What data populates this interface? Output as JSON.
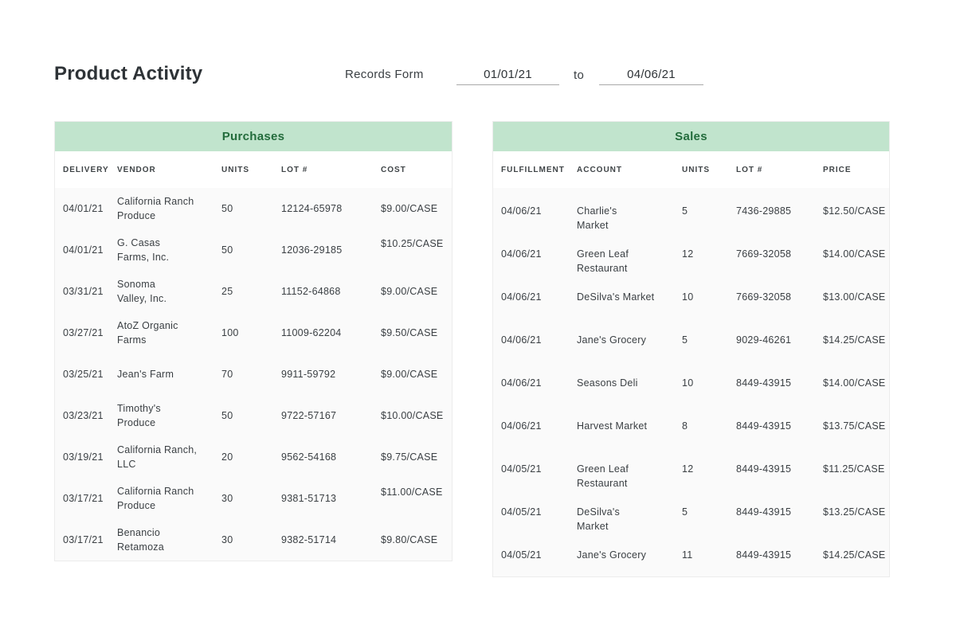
{
  "page": {
    "title": "Product Activity",
    "records_form_label": "Records Form",
    "to_label": "to",
    "date_from": "01/01/21",
    "date_to": "04/06/21"
  },
  "colors": {
    "band_green": "#c1e4cd",
    "title_green": "#236c3c",
    "text_dark": "#2e3337"
  },
  "purchases": {
    "title": "Purchases",
    "columns": [
      "DELIVERY",
      "VENDOR",
      "UNITS",
      "LOT #",
      "COST"
    ],
    "rows": [
      {
        "delivery": "04/01/21",
        "vendor": "California Ranch\nProduce",
        "units": "50",
        "lot": "12124-65978",
        "cost": "$9.00/CASE"
      },
      {
        "delivery": "04/01/21",
        "vendor": "G. Casas\nFarms, Inc.",
        "units": "50",
        "lot": "12036-29185",
        "cost": "$10.25/CASE",
        "costTop": true
      },
      {
        "delivery": "03/31/21",
        "vendor": "Sonoma\nValley, Inc.",
        "units": "25",
        "lot": "11152-64868",
        "cost": "$9.00/CASE"
      },
      {
        "delivery": "03/27/21",
        "vendor": "AtoZ Organic\nFarms",
        "units": "100",
        "lot": "11009-62204",
        "cost": "$9.50/CASE"
      },
      {
        "delivery": "03/25/21",
        "vendor": "Jean's Farm",
        "units": "70",
        "lot": "9911-59792",
        "cost": "$9.00/CASE"
      },
      {
        "delivery": "03/23/21",
        "vendor": "Timothy's\nProduce",
        "units": "50",
        "lot": "9722-57167",
        "cost": "$10.00/CASE"
      },
      {
        "delivery": "03/19/21",
        "vendor": "California Ranch,\nLLC",
        "units": "20",
        "lot": "9562-54168",
        "cost": "$9.75/CASE"
      },
      {
        "delivery": "03/17/21",
        "vendor": "California Ranch\nProduce",
        "units": "30",
        "lot": "9381-51713",
        "cost": "$11.00/CASE",
        "costTop": true
      },
      {
        "delivery": "03/17/21",
        "vendor": "Benancio\nRetamoza",
        "units": "30",
        "lot": "9382-51714",
        "cost": "$9.80/CASE"
      }
    ]
  },
  "sales": {
    "title": "Sales",
    "columns": [
      "FULFILLMENT",
      "ACCOUNT",
      "UNITS",
      "LOT #",
      "PRICE"
    ],
    "rows": [
      {
        "fulfillment": "04/06/21",
        "account": "Charlie's\nMarket",
        "units": "5",
        "lot": "7436-29885",
        "price": "$12.50/CASE"
      },
      {
        "fulfillment": "04/06/21",
        "account": "Green Leaf\nRestaurant",
        "units": "12",
        "lot": "7669-32058",
        "price": "$14.00/CASE"
      },
      {
        "fulfillment": "04/06/21",
        "account": "DeSilva's Market",
        "units": "10",
        "lot": "7669-32058",
        "price": "$13.00/CASE"
      },
      {
        "fulfillment": "04/06/21",
        "account": "Jane's Grocery",
        "units": "5",
        "lot": "9029-46261",
        "price": "$14.25/CASE"
      },
      {
        "fulfillment": "04/06/21",
        "account": "Seasons Deli",
        "units": "10",
        "lot": "8449-43915",
        "price": "$14.00/CASE"
      },
      {
        "fulfillment": "04/06/21",
        "account": "Harvest Market",
        "units": "8",
        "lot": "8449-43915",
        "price": "$13.75/CASE"
      },
      {
        "fulfillment": "04/05/21",
        "account": "Green Leaf\nRestaurant",
        "units": "12",
        "lot": "8449-43915",
        "price": "$11.25/CASE"
      },
      {
        "fulfillment": "04/05/21",
        "account": "DeSilva's\nMarket",
        "units": "5",
        "lot": "8449-43915",
        "price": "$13.25/CASE"
      },
      {
        "fulfillment": "04/05/21",
        "account": "Jane's Grocery",
        "units": "11",
        "lot": "8449-43915",
        "price": "$14.25/CASE"
      }
    ]
  }
}
